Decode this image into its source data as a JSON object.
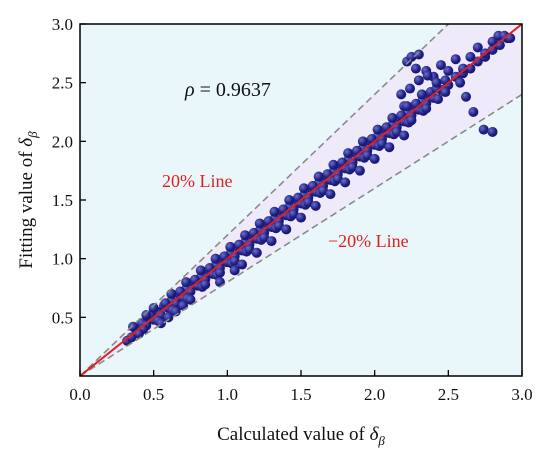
{
  "colors": {
    "plot_background": "#e9f7fb",
    "band_fill": "#eeeaf9",
    "point": "#1a1a7a",
    "point_highlight": "#6b6fd0",
    "fit_line": "#e02020",
    "bound_lines": "#8a8a8a",
    "annotation_red": "#e02020",
    "axis": "#000000"
  },
  "chart_data": {
    "type": "scatter",
    "xlabel": {
      "text": "Calculated value of ",
      "symbol": "δ",
      "subscript": "β"
    },
    "ylabel": {
      "text": "Fitting value of ",
      "symbol": "δ",
      "subscript": "β"
    },
    "xlim": [
      0.0,
      3.0
    ],
    "ylim": [
      0.0,
      3.0
    ],
    "x_ticks": [
      "0.0",
      "0.5",
      "1.0",
      "1.5",
      "2.0",
      "2.5",
      "3.0"
    ],
    "y_ticks": [
      "0.5",
      "1.0",
      "1.5",
      "2.0",
      "2.5",
      "3.0"
    ],
    "grid": false,
    "annotations": {
      "rho_symbol": "ρ",
      "rho_value": " = 0.9637",
      "upper_line_label": "20% Line",
      "lower_line_label": "−20% Line"
    },
    "reference_lines": [
      {
        "kind": "fit",
        "slope": 1.0
      },
      {
        "kind": "upper_bound",
        "slope": 1.2
      },
      {
        "kind": "lower_bound",
        "slope": 0.8
      }
    ],
    "points": {
      "x": [
        0.32,
        0.35,
        0.38,
        0.4,
        0.42,
        0.45,
        0.47,
        0.5,
        0.52,
        0.55,
        0.57,
        0.6,
        0.62,
        0.65,
        0.67,
        0.7,
        0.72,
        0.75,
        0.77,
        0.8,
        0.82,
        0.85,
        0.87,
        0.9,
        0.92,
        0.95,
        0.97,
        1.0,
        1.02,
        1.05,
        1.07,
        1.1,
        1.12,
        1.15,
        1.17,
        1.2,
        1.22,
        1.25,
        1.27,
        1.3,
        1.32,
        1.35,
        1.37,
        1.4,
        1.42,
        1.45,
        1.47,
        1.5,
        1.52,
        1.55,
        1.57,
        1.6,
        1.62,
        1.65,
        1.67,
        1.7,
        1.72,
        1.75,
        1.77,
        1.8,
        1.82,
        1.85,
        1.87,
        1.9,
        1.92,
        1.95,
        1.97,
        2.0,
        2.02,
        2.05,
        2.07,
        2.1,
        2.12,
        2.15,
        2.17,
        2.2,
        2.22,
        2.25,
        2.27,
        2.3,
        2.32,
        2.35,
        2.37,
        2.4,
        2.45,
        2.5,
        2.55,
        2.6,
        2.65,
        2.7,
        2.75,
        2.8,
        2.85,
        2.9,
        0.36,
        0.43,
        0.48,
        0.53,
        0.58,
        0.63,
        0.68,
        0.73,
        0.78,
        0.83,
        0.88,
        0.93,
        0.98,
        1.03,
        1.08,
        1.13,
        1.18,
        1.23,
        1.28,
        1.33,
        1.38,
        1.43,
        1.48,
        1.53,
        1.58,
        1.63,
        1.68,
        1.73,
        1.78,
        1.83,
        1.88,
        1.93,
        1.98,
        2.03,
        2.08,
        2.13,
        2.18,
        2.23,
        2.28,
        2.33,
        2.38,
        2.43,
        2.48,
        0.55,
        0.6,
        0.65,
        0.7,
        0.75,
        0.85,
        0.95,
        1.05,
        1.15,
        1.25,
        1.35,
        1.45,
        1.55,
        1.65,
        1.75,
        1.85,
        1.95,
        2.05,
        2.15,
        2.25,
        2.35,
        2.22,
        2.25,
        2.28,
        2.3,
        2.35,
        2.4,
        2.45,
        2.5,
        2.55,
        2.6,
        2.65,
        2.7,
        2.75,
        2.8,
        2.84,
        2.88,
        2.92,
        2.18,
        2.2,
        2.24,
        2.3,
        2.36,
        2.42,
        2.48,
        2.58,
        2.62,
        2.67,
        2.74,
        2.8,
        0.4,
        0.45,
        0.5,
        0.62,
        0.72,
        0.82,
        0.92,
        1.02,
        1.12,
        1.22,
        1.32,
        1.42,
        1.52,
        1.62,
        1.72,
        1.82,
        1.92,
        2.02,
        2.12,
        2.22,
        2.32,
        2.42,
        0.95,
        1.05,
        1.1,
        1.2,
        1.3,
        1.4,
        1.5,
        1.6,
        1.7,
        1.8,
        1.9,
        2.0,
        2.1,
        2.2
      ],
      "y": [
        0.3,
        0.33,
        0.4,
        0.37,
        0.45,
        0.43,
        0.5,
        0.48,
        0.55,
        0.52,
        0.6,
        0.58,
        0.64,
        0.62,
        0.7,
        0.67,
        0.74,
        0.72,
        0.8,
        0.77,
        0.84,
        0.82,
        0.9,
        0.87,
        0.94,
        0.92,
        1.0,
        0.97,
        1.04,
        1.02,
        1.1,
        1.07,
        1.14,
        1.12,
        1.2,
        1.17,
        1.24,
        1.22,
        1.3,
        1.27,
        1.34,
        1.32,
        1.4,
        1.37,
        1.44,
        1.42,
        1.5,
        1.47,
        1.54,
        1.52,
        1.6,
        1.57,
        1.64,
        1.62,
        1.7,
        1.67,
        1.74,
        1.72,
        1.8,
        1.77,
        1.84,
        1.82,
        1.9,
        1.87,
        1.94,
        1.92,
        2.0,
        1.97,
        2.04,
        2.02,
        2.1,
        2.07,
        2.14,
        2.12,
        2.2,
        2.17,
        2.24,
        2.22,
        2.3,
        2.27,
        2.34,
        2.32,
        2.4,
        2.37,
        2.44,
        2.48,
        2.55,
        2.58,
        2.62,
        2.68,
        2.72,
        2.78,
        2.82,
        2.88,
        0.42,
        0.4,
        0.52,
        0.47,
        0.62,
        0.56,
        0.72,
        0.66,
        0.82,
        0.76,
        0.92,
        0.86,
        1.02,
        0.96,
        1.12,
        1.06,
        1.22,
        1.16,
        1.32,
        1.26,
        1.42,
        1.36,
        1.52,
        1.46,
        1.62,
        1.56,
        1.72,
        1.66,
        1.82,
        1.76,
        1.92,
        1.86,
        2.02,
        1.96,
        2.12,
        2.06,
        2.22,
        2.16,
        2.32,
        2.26,
        2.42,
        2.36,
        2.52,
        0.45,
        0.5,
        0.55,
        0.6,
        0.65,
        0.78,
        0.88,
        0.98,
        1.08,
        1.18,
        1.28,
        1.38,
        1.48,
        1.58,
        1.68,
        1.78,
        1.88,
        1.98,
        2.08,
        2.18,
        2.28,
        2.68,
        2.72,
        2.62,
        2.74,
        2.6,
        2.55,
        2.65,
        2.6,
        2.7,
        2.62,
        2.72,
        2.8,
        2.75,
        2.85,
        2.9,
        2.9,
        2.88,
        2.4,
        2.3,
        2.45,
        2.52,
        2.56,
        2.45,
        2.42,
        2.5,
        2.38,
        2.25,
        2.1,
        2.08,
        0.36,
        0.52,
        0.58,
        0.7,
        0.8,
        0.9,
        1.0,
        1.1,
        1.2,
        1.3,
        1.4,
        1.5,
        1.6,
        1.7,
        1.8,
        1.9,
        2.0,
        2.1,
        2.2,
        2.3,
        2.4,
        2.5,
        0.8,
        0.9,
        0.95,
        1.05,
        1.15,
        1.25,
        1.35,
        1.45,
        1.55,
        1.65,
        1.75,
        1.85,
        1.95,
        2.05
      ]
    }
  }
}
